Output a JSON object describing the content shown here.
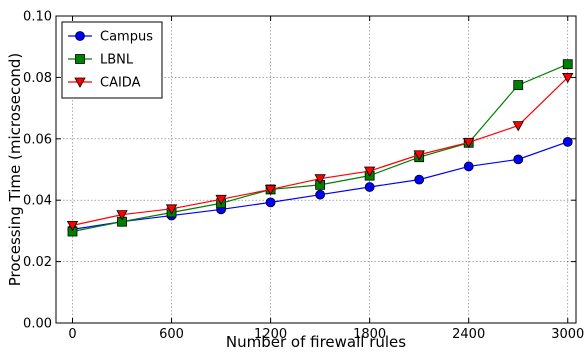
{
  "chart_data": {
    "type": "line",
    "xlabel": "Number of firewall rules",
    "ylabel": "Processing Time (microsecond)",
    "xlim": [
      -100,
      3050
    ],
    "ylim": [
      0.0,
      0.1
    ],
    "xticks": [
      0,
      600,
      1200,
      1800,
      2400,
      3000
    ],
    "yticks": [
      0.0,
      0.02,
      0.04,
      0.06,
      0.08,
      0.1
    ],
    "ytick_labels": [
      "0.00",
      "0.02",
      "0.04",
      "0.06",
      "0.08",
      "0.10"
    ],
    "grid": true,
    "legend_position": "top-left",
    "x": [
      0,
      300,
      600,
      900,
      1200,
      1500,
      1800,
      2100,
      2400,
      2700,
      3000
    ],
    "series": [
      {
        "name": "Campus",
        "color": "#0000ff",
        "marker": "circle",
        "values": [
          0.0305,
          0.033,
          0.035,
          0.037,
          0.0393,
          0.0418,
          0.0443,
          0.0467,
          0.051,
          0.0533,
          0.059
        ]
      },
      {
        "name": "LBNL",
        "color": "#008000",
        "marker": "square",
        "values": [
          0.0298,
          0.033,
          0.036,
          0.039,
          0.0435,
          0.045,
          0.048,
          0.054,
          0.0587,
          0.0775,
          0.0843
        ]
      },
      {
        "name": "CAIDA",
        "color": "#ff0000",
        "marker": "triangle-down",
        "values": [
          0.0318,
          0.0353,
          0.0372,
          0.0403,
          0.0435,
          0.047,
          0.0495,
          0.0548,
          0.0588,
          0.0643,
          0.08
        ]
      }
    ]
  }
}
